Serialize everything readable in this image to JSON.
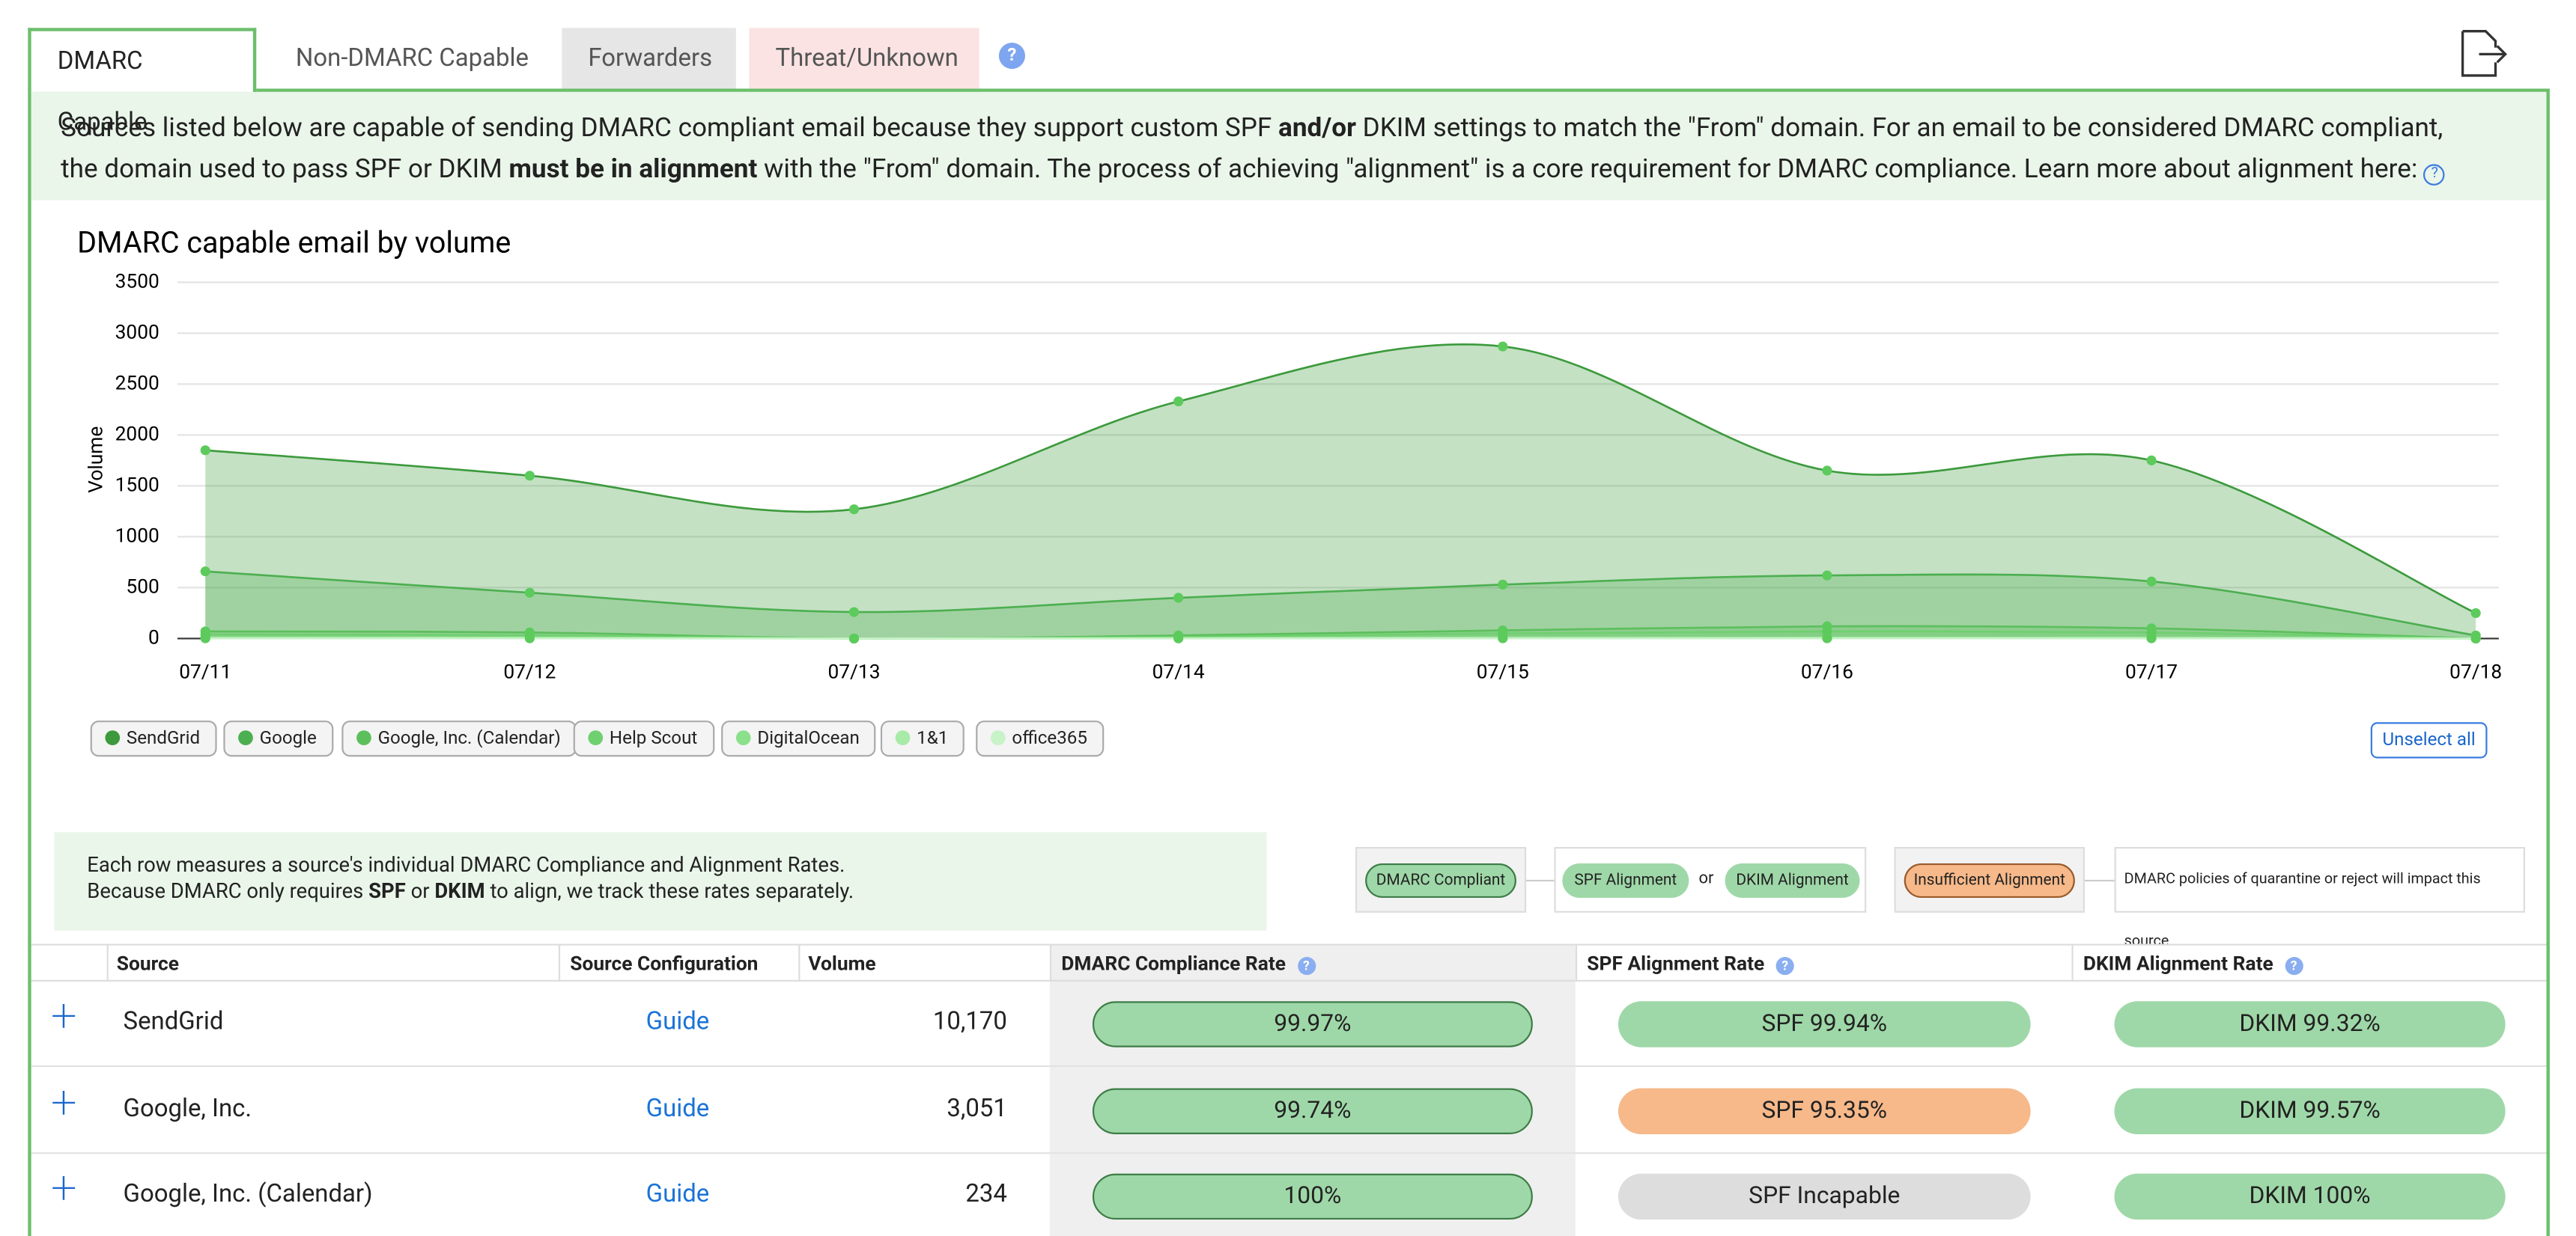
{
  "tabs": [
    "DMARC Capable",
    "Non-DMARC Capable",
    "Forwarders",
    "Threat/Unknown"
  ],
  "description": {
    "part1": "Sources listed below are capable of sending DMARC compliant email because they support custom SPF ",
    "bold1": "and/or",
    "part2": " DKIM settings to match the \"From\" domain. For an email to be considered DMARC compliant,",
    "part3": "the domain used to pass SPF or DKIM ",
    "bold2": "must be in alignment",
    "part4": " with the \"From\" domain. The process of achieving \"alignment\" is a core requirement for DMARC compliance. Learn more about alignment here:"
  },
  "chart_data": {
    "type": "area",
    "title": "DMARC capable email by volume",
    "y_label": "Volume",
    "categories": [
      "07/11",
      "07/12",
      "07/13",
      "07/14",
      "07/15",
      "07/16",
      "07/17",
      "07/18"
    ],
    "series": [
      {
        "name": "SendGrid",
        "color": "#3c9a3c",
        "values": [
          1850,
          1600,
          1270,
          2330,
          2870,
          1650,
          1750,
          250
        ]
      },
      {
        "name": "Google",
        "color": "#4caf50",
        "values": [
          660,
          450,
          260,
          400,
          530,
          620,
          560,
          30
        ]
      },
      {
        "name": "Google, Inc. (Calendar)",
        "color": "#5cbf5c",
        "values": [
          70,
          60,
          0,
          30,
          80,
          120,
          100,
          0
        ]
      },
      {
        "name": "Help Scout",
        "color": "#6fd06f",
        "values": [
          40,
          30,
          0,
          15,
          50,
          70,
          60,
          0
        ]
      },
      {
        "name": "DigitalOcean",
        "color": "#8be08b",
        "values": [
          10,
          10,
          0,
          5,
          10,
          10,
          10,
          0
        ]
      },
      {
        "name": "1&1",
        "color": "#a8eaa8",
        "values": [
          5,
          5,
          0,
          2,
          5,
          5,
          5,
          0
        ]
      },
      {
        "name": "office365",
        "color": "#c8f2c8",
        "values": [
          2,
          2,
          0,
          1,
          2,
          2,
          2,
          0
        ]
      }
    ],
    "ylim": [
      0,
      3500
    ],
    "yticks": [
      0,
      500,
      1000,
      1500,
      2000,
      2500,
      3000,
      3500
    ],
    "grid": true
  },
  "unselect_all": "Unselect all",
  "info": {
    "line1": "Each row measures a source's individual DMARC Compliance and Alignment Rates.",
    "a": "Because DMARC only requires ",
    "b": "SPF",
    "c": " or ",
    "d": "DKIM",
    "e": " to align, we track these rates separately."
  },
  "key": {
    "compliant": "DMARC Compliant",
    "spf": "SPF Alignment",
    "or": "or",
    "dkim": "DKIM Alignment",
    "insufficient": "Insufficient Alignment",
    "note": "DMARC policies of quarantine or reject will impact this source"
  },
  "table": {
    "headers": [
      "Source",
      "Source Configuration",
      "Volume",
      "DMARC Compliance Rate",
      "SPF Alignment Rate",
      "DKIM Alignment Rate"
    ],
    "rows": [
      {
        "source": "SendGrid",
        "config": "Guide",
        "volume": "10,170",
        "dmarc": "99.97%",
        "spf": "SPF 99.94%",
        "spf_color": "#9fd8a8",
        "dkim": "DKIM 99.32%"
      },
      {
        "source": "Google, Inc.",
        "config": "Guide",
        "volume": "3,051",
        "dmarc": "99.74%",
        "spf": "SPF 95.35%",
        "spf_color": "#f7b98a",
        "dkim": "DKIM 99.57%"
      },
      {
        "source": "Google, Inc. (Calendar)",
        "config": "Guide",
        "volume": "234",
        "dmarc": "100%",
        "spf": "SPF Incapable",
        "spf_color": "#dddddd",
        "dkim": "DKIM 100%"
      }
    ]
  }
}
